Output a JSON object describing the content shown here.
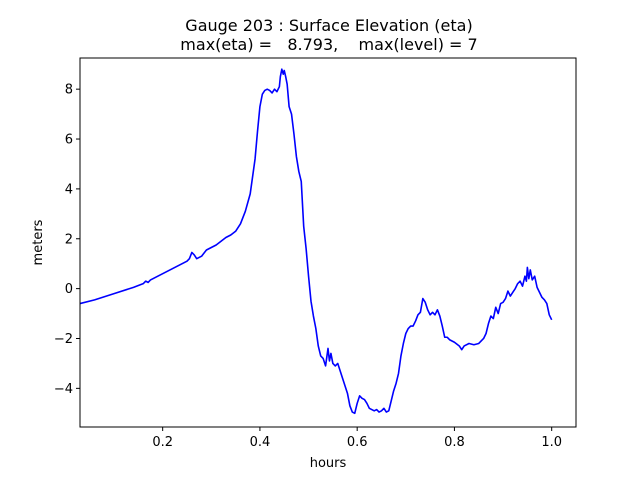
{
  "chart_data": {
    "type": "line",
    "title": "Gauge 203 : Surface Elevation (eta)",
    "subtitle": "max(eta) =   8.793,    max(level) = 7",
    "xlabel": "hours",
    "ylabel": "meters",
    "xlim": [
      0.03,
      1.05
    ],
    "ylim": [
      -5.55,
      9.25
    ],
    "xticks": [
      0.2,
      0.4,
      0.6,
      0.8,
      1.0
    ],
    "xtick_labels": [
      "0.2",
      "0.4",
      "0.6",
      "0.8",
      "1.0"
    ],
    "yticks": [
      -4,
      -2,
      0,
      2,
      4,
      6,
      8
    ],
    "ytick_labels": [
      "−4",
      "−2",
      "0",
      "2",
      "4",
      "6",
      "8"
    ],
    "grid": false,
    "series": [
      {
        "color": "#0000ff",
        "x": [
          0.03,
          0.06,
          0.1,
          0.14,
          0.16,
          0.165,
          0.17,
          0.175,
          0.19,
          0.22,
          0.245,
          0.25,
          0.255,
          0.26,
          0.265,
          0.27,
          0.28,
          0.29,
          0.3,
          0.31,
          0.32,
          0.33,
          0.34,
          0.35,
          0.36,
          0.37,
          0.38,
          0.39,
          0.395,
          0.4,
          0.405,
          0.41,
          0.415,
          0.42,
          0.425,
          0.43,
          0.435,
          0.44,
          0.442,
          0.445,
          0.448,
          0.45,
          0.453,
          0.456,
          0.46,
          0.465,
          0.47,
          0.475,
          0.48,
          0.485,
          0.49,
          0.495,
          0.5,
          0.505,
          0.51,
          0.515,
          0.52,
          0.525,
          0.53,
          0.535,
          0.54,
          0.543,
          0.546,
          0.55,
          0.555,
          0.56,
          0.565,
          0.57,
          0.575,
          0.58,
          0.585,
          0.59,
          0.595,
          0.6,
          0.605,
          0.61,
          0.615,
          0.62,
          0.625,
          0.63,
          0.635,
          0.64,
          0.645,
          0.65,
          0.655,
          0.66,
          0.665,
          0.67,
          0.675,
          0.68,
          0.685,
          0.69,
          0.695,
          0.7,
          0.705,
          0.71,
          0.715,
          0.72,
          0.725,
          0.73,
          0.735,
          0.74,
          0.745,
          0.75,
          0.755,
          0.76,
          0.765,
          0.77,
          0.775,
          0.78,
          0.785,
          0.79,
          0.8,
          0.81,
          0.815,
          0.82,
          0.83,
          0.84,
          0.85,
          0.86,
          0.865,
          0.87,
          0.875,
          0.88,
          0.885,
          0.89,
          0.895,
          0.9,
          0.905,
          0.91,
          0.915,
          0.92,
          0.925,
          0.93,
          0.935,
          0.94,
          0.945,
          0.948,
          0.95,
          0.953,
          0.956,
          0.96,
          0.965,
          0.97,
          0.975,
          0.98,
          0.985,
          0.99,
          0.995,
          1.0
        ],
        "y": [
          -0.6,
          -0.45,
          -0.2,
          0.05,
          0.2,
          0.3,
          0.25,
          0.35,
          0.5,
          0.8,
          1.05,
          1.1,
          1.2,
          1.45,
          1.35,
          1.2,
          1.3,
          1.55,
          1.65,
          1.75,
          1.9,
          2.05,
          2.15,
          2.3,
          2.6,
          3.1,
          3.8,
          5.2,
          6.3,
          7.3,
          7.8,
          7.95,
          8.0,
          7.95,
          7.85,
          8.0,
          7.9,
          8.1,
          8.5,
          8.8,
          8.6,
          8.75,
          8.5,
          8.2,
          7.3,
          7.0,
          6.2,
          5.3,
          4.7,
          4.3,
          2.5,
          1.6,
          0.5,
          -0.5,
          -1.1,
          -1.6,
          -2.3,
          -2.7,
          -2.8,
          -3.1,
          -2.4,
          -2.9,
          -2.6,
          -3.0,
          -3.1,
          -3.0,
          -3.3,
          -3.6,
          -3.9,
          -4.2,
          -4.7,
          -4.95,
          -5.0,
          -4.6,
          -4.3,
          -4.4,
          -4.45,
          -4.6,
          -4.8,
          -4.85,
          -4.9,
          -4.85,
          -4.95,
          -4.9,
          -4.8,
          -4.95,
          -4.9,
          -4.5,
          -4.1,
          -3.8,
          -3.4,
          -2.7,
          -2.2,
          -1.8,
          -1.6,
          -1.5,
          -1.5,
          -1.3,
          -1.05,
          -0.95,
          -0.4,
          -0.55,
          -0.85,
          -1.05,
          -0.95,
          -1.05,
          -0.85,
          -1.1,
          -1.5,
          -1.95,
          -1.95,
          -2.05,
          -2.15,
          -2.3,
          -2.45,
          -2.3,
          -2.2,
          -2.25,
          -2.2,
          -2.0,
          -1.8,
          -1.4,
          -1.1,
          -1.2,
          -0.75,
          -1.0,
          -0.6,
          -0.55,
          -0.4,
          -0.1,
          -0.3,
          -0.15,
          0.0,
          0.2,
          0.3,
          0.1,
          0.5,
          0.3,
          0.85,
          0.4,
          0.75,
          0.35,
          0.5,
          0.05,
          -0.15,
          -0.35,
          -0.45,
          -0.6,
          -1.05,
          -1.25
        ]
      }
    ]
  }
}
